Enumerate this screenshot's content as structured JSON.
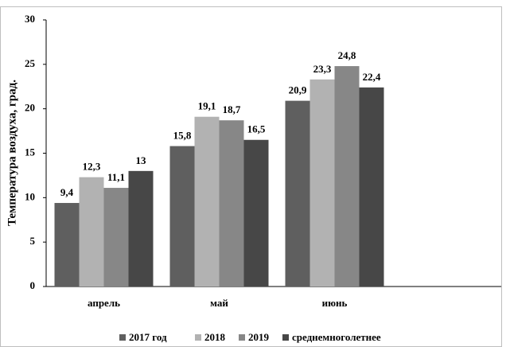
{
  "chart_data": {
    "type": "bar",
    "y_label": "Температура воздуха, град.",
    "categories": [
      "апрель",
      "май",
      "июнь",
      null
    ],
    "series": [
      {
        "name": "2017 год",
        "color": "#5f5f5f",
        "values": [
          9.4,
          15.8,
          20.9,
          null
        ],
        "value_labels": [
          "9,4",
          "15,8",
          "20,9",
          null
        ]
      },
      {
        "name": "2018",
        "color": "#b2b2b2",
        "values": [
          12.3,
          19.1,
          23.3,
          null
        ],
        "value_labels": [
          "12,3",
          "19,1",
          "23,3",
          null
        ]
      },
      {
        "name": "2019",
        "color": "#878787",
        "values": [
          11.1,
          18.7,
          24.8,
          null
        ],
        "value_labels": [
          "11,1",
          "18,7",
          "24,8",
          null
        ]
      },
      {
        "name": "среднемноголетнее",
        "color": "#474747",
        "values": [
          13,
          16.5,
          22.4,
          null
        ],
        "value_labels": [
          "13",
          "16,5",
          "22,4",
          null
        ]
      }
    ],
    "ylim": [
      0,
      30
    ],
    "yticks": [
      0,
      5,
      10,
      15,
      20,
      25,
      30
    ],
    "grid": false
  }
}
